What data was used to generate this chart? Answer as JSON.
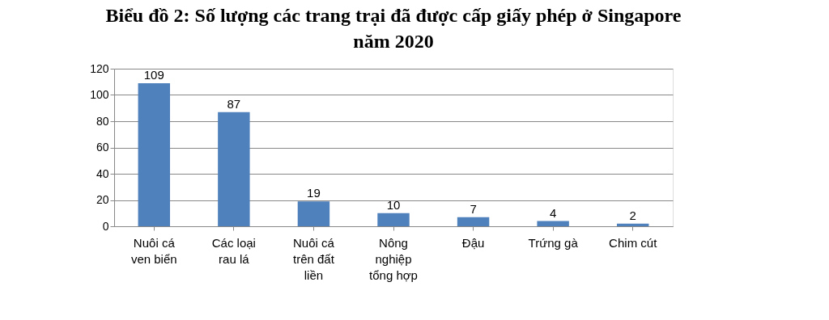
{
  "chart_data": {
    "type": "bar",
    "title": "Biểu đồ 2: Số lượng các trang trại đã được cấp giấy phép ở Singapore năm 2020",
    "categories": [
      "Nuôi cá ven biển",
      "Các loại rau lá",
      "Nuôi cá trên đất liền",
      "Nông nghiệp tổng hợp",
      "Đậu",
      "Trứng gà",
      "Chim cút"
    ],
    "values": [
      109,
      87,
      19,
      10,
      7,
      4,
      2
    ],
    "color": "#4f81bd",
    "ylim": [
      0,
      120
    ],
    "yticks": [
      0,
      20,
      40,
      60,
      80,
      100,
      120
    ],
    "grid": "y",
    "data_labels": true
  }
}
